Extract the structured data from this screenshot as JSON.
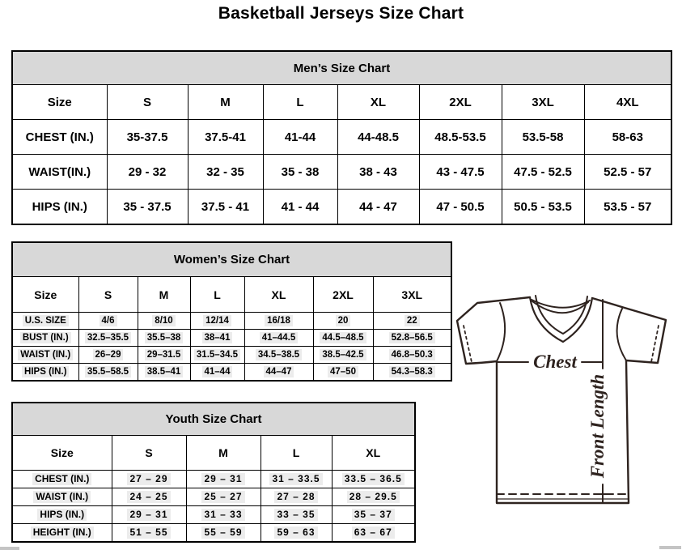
{
  "page_title": "Basketball Jerseys Size Chart",
  "colors": {
    "table_header_bg": "#d8d8d8",
    "table_border": "#000000",
    "diagram_stroke": "#2e231f",
    "text_highlight": "#ececec"
  },
  "tables": [
    {
      "id": "men",
      "title": "Men’s Size Chart",
      "size_header": [
        "Size",
        "S",
        "M",
        "L",
        "XL",
        "2XL",
        "3XL",
        "4XL"
      ],
      "rows": [
        {
          "label": "CHEST (IN.)",
          "values": [
            "35-37.5",
            "37.5-41",
            "41-44",
            "44-48.5",
            "48.5-53.5",
            "53.5-58",
            "58-63"
          ]
        },
        {
          "label": "WAIST(IN.)",
          "values": [
            "29 - 32",
            "32 - 35",
            "35 - 38",
            "38 - 43",
            "43 - 47.5",
            "47.5 - 52.5",
            "52.5 - 57"
          ]
        },
        {
          "label": "HIPS (IN.)",
          "values": [
            "35 - 37.5",
            "37.5 - 41",
            "41 - 44",
            "44 - 47",
            "47 - 50.5",
            "50.5 - 53.5",
            "53.5 - 57"
          ]
        }
      ]
    },
    {
      "id": "women",
      "title": "Women’s Size Chart",
      "size_header": [
        "Size",
        "S",
        "M",
        "L",
        "XL",
        "2XL",
        "3XL"
      ],
      "rows": [
        {
          "label": "U.S. SIZE",
          "values": [
            "4/6",
            "8/10",
            "12/14",
            "16/18",
            "20",
            "22"
          ]
        },
        {
          "label": "BUST (IN.)",
          "values": [
            "32.5–35.5",
            "35.5–38",
            "38–41",
            "41–44.5",
            "44.5–48.5",
            "52.8–56.5"
          ]
        },
        {
          "label": "WAIST (IN.)",
          "values": [
            "26–29",
            "29–31.5",
            "31.5–34.5",
            "34.5–38.5",
            "38.5–42.5",
            "46.8–50.3"
          ]
        },
        {
          "label": "HIPS (IN.)",
          "values": [
            "35.5–58.5",
            "38.5–41",
            "41–44",
            "44–47",
            "47–50",
            "54.3–58.3"
          ]
        }
      ]
    },
    {
      "id": "youth",
      "title": "Youth Size Chart",
      "size_header": [
        "Size",
        "S",
        "M",
        "L",
        "XL"
      ],
      "rows": [
        {
          "label": "CHEST (IN.)",
          "values": [
            "27 – 29",
            "29 – 31",
            "31 – 33.5",
            "33.5 – 36.5"
          ]
        },
        {
          "label": "WAIST (IN.)",
          "values": [
            "24 – 25",
            "25 – 27",
            "27 – 28",
            "28 – 29.5"
          ]
        },
        {
          "label": "HIPS (IN.)",
          "values": [
            "29 – 31",
            "31 – 33",
            "33 – 35",
            "35 – 37"
          ]
        },
        {
          "label": "HEIGHT (IN.)",
          "values": [
            "51 – 55",
            "55 – 59",
            "59 – 63",
            "63 – 67"
          ]
        }
      ]
    }
  ],
  "diagram": {
    "chest_label": "Chest",
    "front_length_label": "Front Length"
  }
}
